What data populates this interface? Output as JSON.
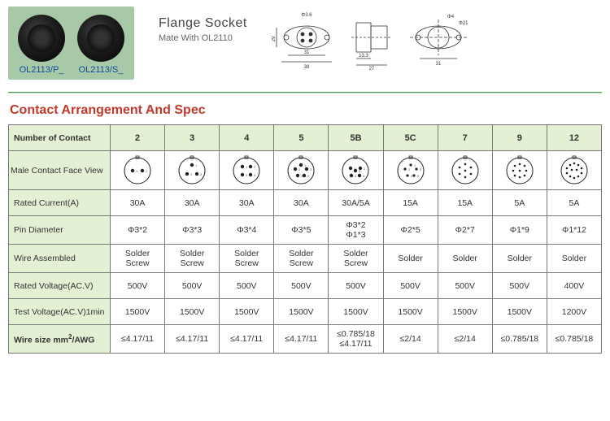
{
  "products": [
    {
      "label": "OL2113/P_"
    },
    {
      "label": "OL2113/S_"
    }
  ],
  "title": "Flange Socket",
  "subtitle": "Mate With OL2110",
  "drawings": {
    "front": {
      "d1": "Φ3.6",
      "h": "29",
      "w": "31",
      "w2": "38"
    },
    "side": {
      "w1": "13.3",
      "w2": "27"
    },
    "back": {
      "d1": "Φ4",
      "d2": "Φ21",
      "w": "31"
    }
  },
  "section_title": "Contact Arrangement And Spec",
  "table": {
    "header_label": "Number of Contact",
    "columns": [
      "2",
      "3",
      "4",
      "5",
      "5B",
      "5C",
      "7",
      "9",
      "12"
    ],
    "face_pins": [
      2,
      3,
      4,
      5,
      5,
      5,
      7,
      9,
      12
    ],
    "rows": [
      {
        "label": "Male Contact Face View",
        "type": "face"
      },
      {
        "label": "Rated Current(A)",
        "values": [
          "30A",
          "30A",
          "30A",
          "30A",
          "30A/5A",
          "15A",
          "15A",
          "5A",
          "5A"
        ]
      },
      {
        "label": "Pin Diameter",
        "values": [
          "Φ3*2",
          "Φ3*3",
          "Φ3*4",
          "Φ3*5",
          "Φ3*2\nΦ1*3",
          "Φ2*5",
          "Φ2*7",
          "Φ1*9",
          "Φ1*12"
        ]
      },
      {
        "label": "Wire  Assembled",
        "values": [
          "Solder\nScrew",
          "Solder\nScrew",
          "Solder\nScrew",
          "Solder\nScrew",
          "Solder\nScrew",
          "Solder",
          "Solder",
          "Solder",
          "Solder"
        ]
      },
      {
        "label": "Rated Voltage(AC.V)",
        "values": [
          "500V",
          "500V",
          "500V",
          "500V",
          "500V",
          "500V",
          "500V",
          "500V",
          "400V"
        ]
      },
      {
        "label": "Test Voltage(AC.V)1min",
        "values": [
          "1500V",
          "1500V",
          "1500V",
          "1500V",
          "1500V",
          "1500V",
          "1500V",
          "1500V",
          "1200V"
        ]
      },
      {
        "label": "Wire size mm²/AWG",
        "label_html": "Wire size mm<span class='sup'>2</span>/AWG",
        "bold": true,
        "values": [
          "≤4.17/11",
          "≤4.17/11",
          "≤4.17/11",
          "≤4.17/11",
          "≤0.785/18\n≤4.17/11",
          "≤2/14",
          "≤2/14",
          "≤0.785/18",
          "≤0.785/18"
        ]
      }
    ]
  },
  "colors": {
    "product_bg": "#a7c9a7",
    "header_bg": "#e4f0d4",
    "title_color": "#c0392b",
    "link_color": "#0b4a9e",
    "border": "#777"
  }
}
